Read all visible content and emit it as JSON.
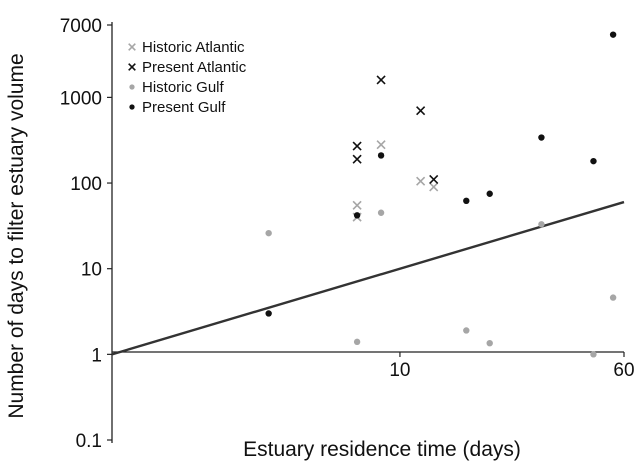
{
  "chart_data": {
    "type": "scatter",
    "xlabel": "Estuary residence time (days)",
    "ylabel": "Number of days to filter estuary volume",
    "x_scale": "log",
    "y_scale": "log",
    "xlim": [
      1,
      60
    ],
    "ylim": [
      0.1,
      7000
    ],
    "x_ticks": [
      {
        "value": 10,
        "label": "10"
      },
      {
        "value": 60,
        "label": "60"
      }
    ],
    "y_ticks": [
      {
        "value": 0.1,
        "label": "0.1"
      },
      {
        "value": 1,
        "label": "1"
      },
      {
        "value": 10,
        "label": "10"
      },
      {
        "value": 100,
        "label": "100"
      },
      {
        "value": 1000,
        "label": "1000"
      },
      {
        "value": 7000,
        "label": "7000"
      }
    ],
    "grid": false,
    "legend_position": "top-left",
    "series": [
      {
        "name": "Historic Atlantic",
        "marker": "x",
        "color": "#a6a6a6",
        "points": [
          [
            7.1,
            40
          ],
          [
            7.1,
            55
          ],
          [
            8.6,
            280
          ],
          [
            11.8,
            105
          ],
          [
            13.1,
            90
          ]
        ]
      },
      {
        "name": "Present Atlantic",
        "marker": "x",
        "color": "#111111",
        "points": [
          [
            7.1,
            190
          ],
          [
            7.1,
            270
          ],
          [
            8.6,
            1600
          ],
          [
            11.8,
            700
          ],
          [
            13.1,
            110
          ]
        ]
      },
      {
        "name": "Historic Gulf",
        "marker": "dot",
        "color": "#a6a6a6",
        "points": [
          [
            3.5,
            26
          ],
          [
            7.1,
            1.4
          ],
          [
            8.6,
            45
          ],
          [
            17,
            1.9
          ],
          [
            20.5,
            1.35
          ],
          [
            31,
            33
          ],
          [
            47,
            1.0
          ],
          [
            55,
            4.6
          ]
        ]
      },
      {
        "name": "Present Gulf",
        "marker": "dot",
        "color": "#111111",
        "points": [
          [
            3.5,
            3.0
          ],
          [
            7.1,
            42
          ],
          [
            8.6,
            210
          ],
          [
            17,
            62
          ],
          [
            20.5,
            75
          ],
          [
            31,
            340
          ],
          [
            47,
            180
          ],
          [
            55,
            5400
          ]
        ]
      }
    ],
    "trend_line": {
      "color": "#333333",
      "points": [
        [
          1,
          1
        ],
        [
          60,
          60
        ]
      ]
    }
  }
}
